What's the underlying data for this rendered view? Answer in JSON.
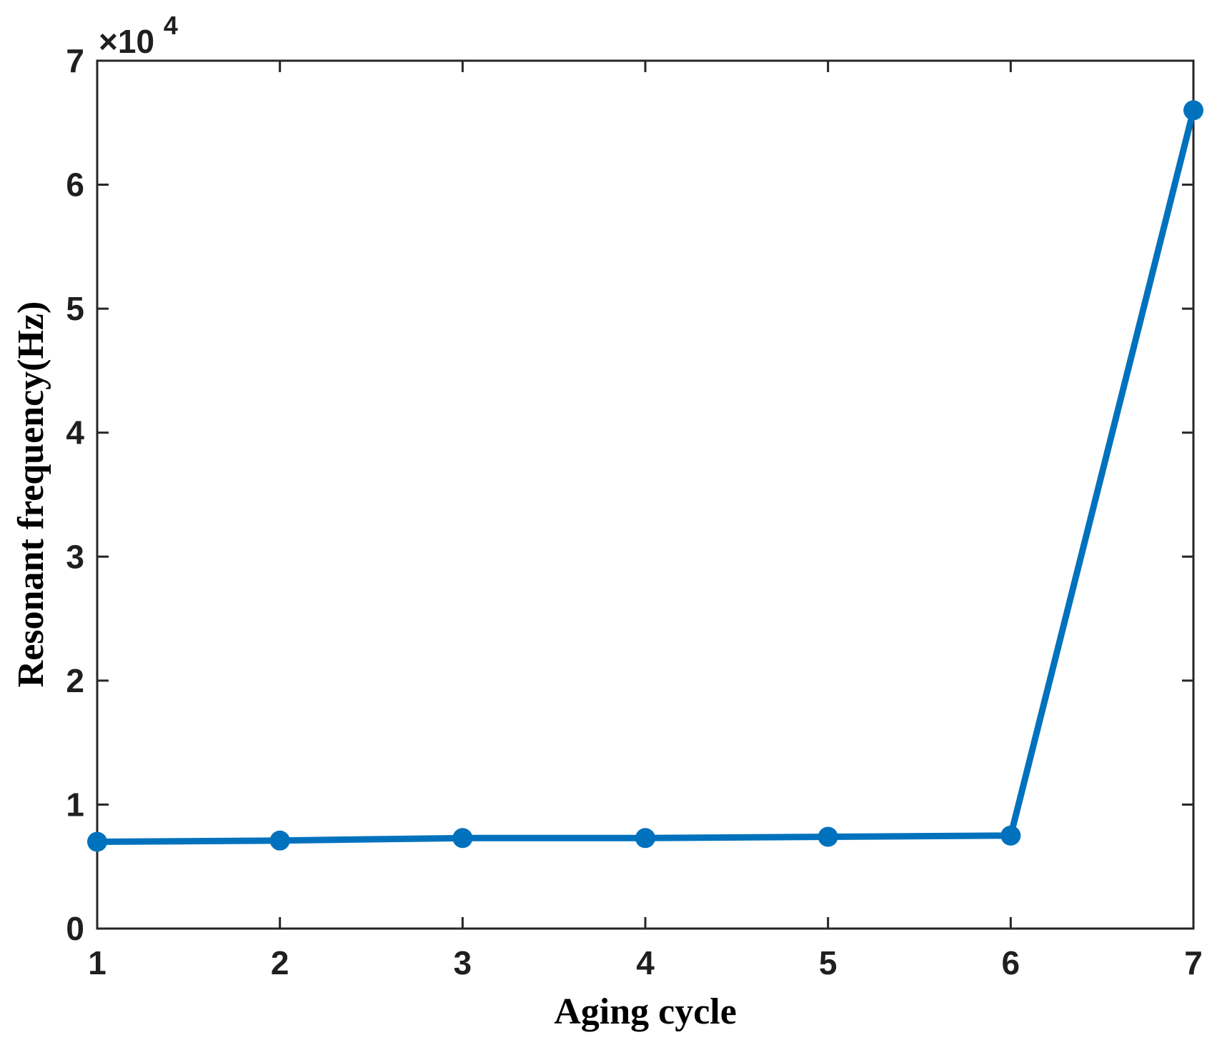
{
  "figure": {
    "background": "#ffffff"
  },
  "chart_data": {
    "type": "line",
    "title": "",
    "xlabel": "Aging cycle",
    "ylabel": "Resonant frequency(Hz)",
    "x": [
      1,
      2,
      3,
      4,
      5,
      6,
      7
    ],
    "y": [
      7000,
      7100,
      7300,
      7300,
      7400,
      7500,
      66000
    ],
    "xlim": [
      1,
      7
    ],
    "ylim": [
      0,
      70000
    ],
    "x_ticks": [
      1,
      2,
      3,
      4,
      5,
      6,
      7
    ],
    "x_tick_labels": [
      "1",
      "2",
      "3",
      "4",
      "5",
      "6",
      "7"
    ],
    "y_ticks": [
      0,
      10000,
      20000,
      30000,
      40000,
      50000,
      60000,
      70000
    ],
    "y_tick_labels": [
      "0",
      "1",
      "2",
      "3",
      "4",
      "5",
      "6",
      "7"
    ],
    "y_axis_multiplier": {
      "base": "×10",
      "exponent": "4"
    },
    "grid": false,
    "legend": null,
    "line_color": "#0072BD",
    "marker": "filled-circle",
    "marker_color": "#0072BD",
    "axis_color": "#262626"
  }
}
